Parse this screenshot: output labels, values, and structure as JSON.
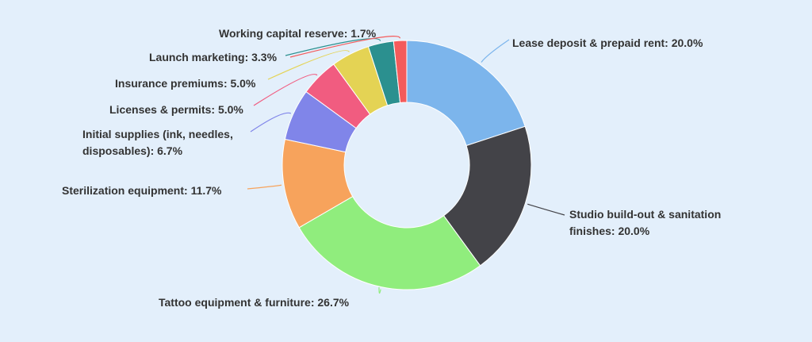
{
  "chart_data": {
    "type": "donut",
    "values": [
      20.0,
      20.0,
      26.7,
      11.7,
      6.7,
      5.0,
      5.0,
      3.3,
      1.7
    ],
    "value_labels": [
      "Lease deposit & prepaid rent: 20.0%",
      "Studio build-out & sanitation finishes: 20.0%",
      "Tattoo equipment & furniture: 26.7%",
      "Sterilization equipment: 11.7%",
      "Initial supplies (ink, needles, disposables): 6.7%",
      "Licenses & permits: 5.0%",
      "Insurance premiums: 5.0%",
      "Launch marketing: 3.3%",
      "Working capital reserve: 1.7%"
    ],
    "colors": [
      "#7cb5ec",
      "#434348",
      "#90ed7d",
      "#f7a35c",
      "#8085e9",
      "#f15c80",
      "#e4d354",
      "#2b908f",
      "#f45b5b"
    ]
  }
}
